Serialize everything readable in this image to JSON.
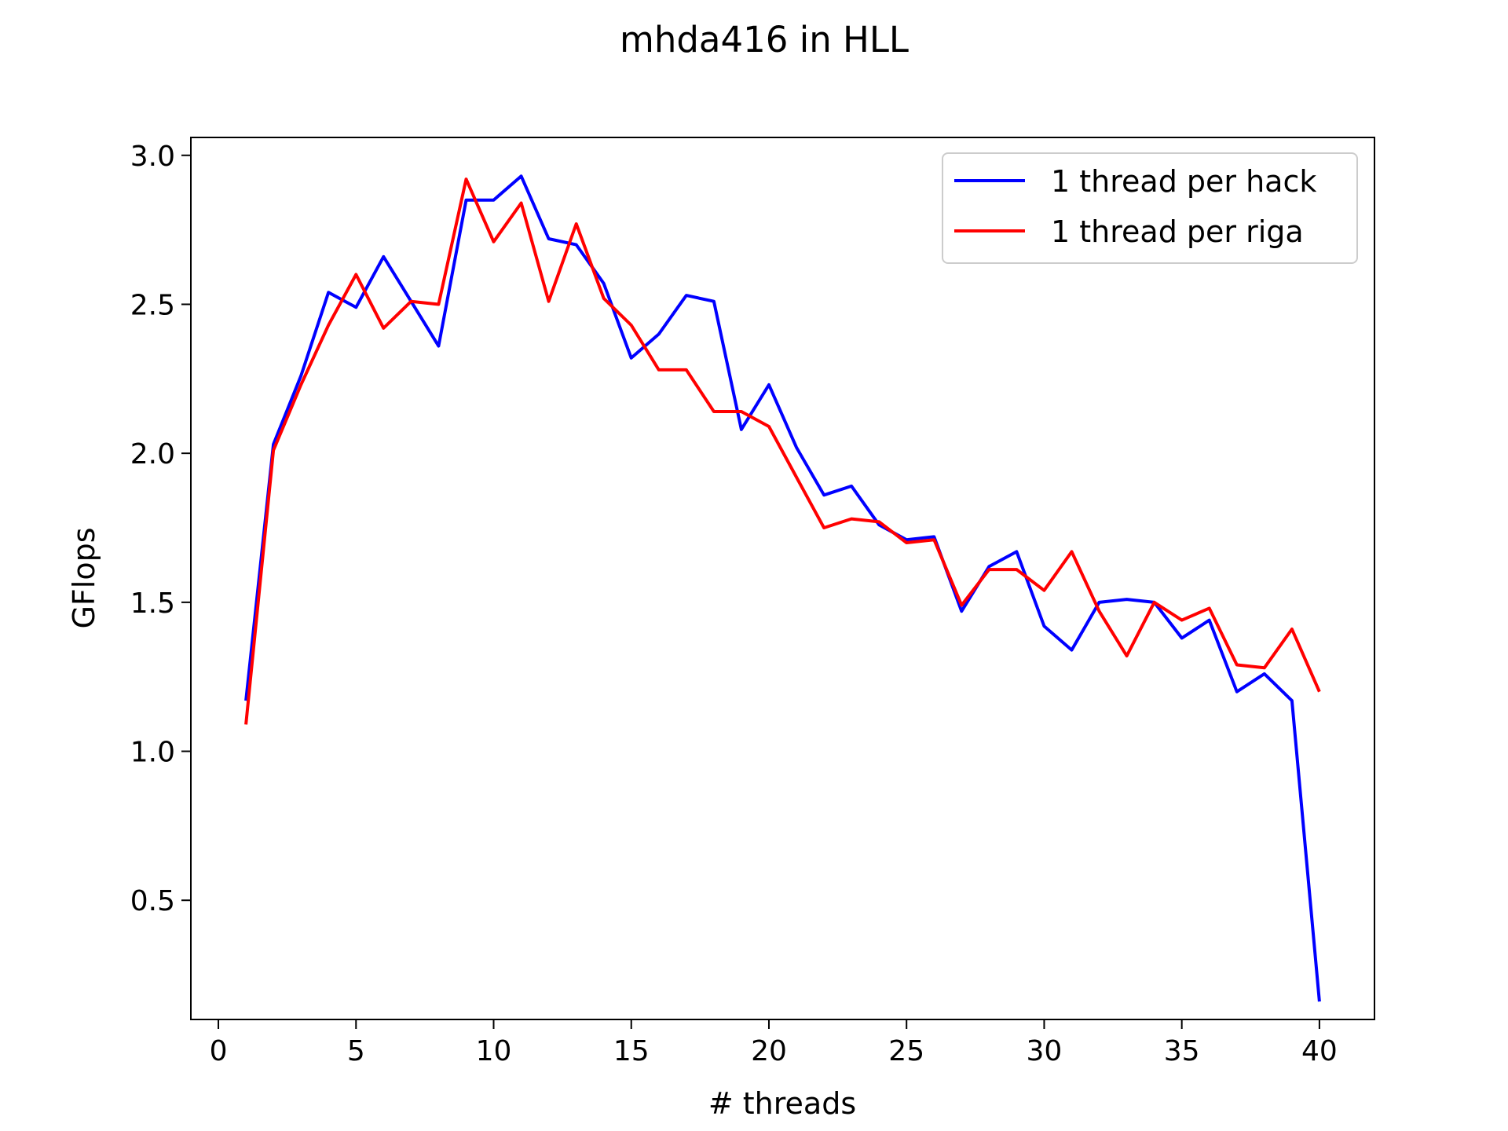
{
  "chart_data": {
    "type": "line",
    "title": "mhda416 in HLL",
    "xlabel": "# threads",
    "ylabel": "GFlops",
    "xlim": [
      -1,
      42
    ],
    "ylim": [
      0.1,
      3.06
    ],
    "xticks": [
      0,
      5,
      10,
      15,
      20,
      25,
      30,
      35,
      40
    ],
    "xtick_labels": [
      "0",
      "5",
      "10",
      "15",
      "20",
      "25",
      "30",
      "35",
      "40"
    ],
    "yticks": [
      0.5,
      1.0,
      1.5,
      2.0,
      2.5,
      3.0
    ],
    "ytick_labels": [
      "0.5",
      "1.0",
      "1.5",
      "2.0",
      "2.5",
      "3.0"
    ],
    "grid": false,
    "legend_position": "top-right",
    "x": [
      1,
      2,
      3,
      4,
      5,
      6,
      7,
      8,
      9,
      10,
      11,
      12,
      13,
      14,
      15,
      16,
      17,
      18,
      19,
      20,
      21,
      22,
      23,
      24,
      25,
      26,
      27,
      28,
      29,
      30,
      31,
      32,
      33,
      34,
      35,
      36,
      37,
      38,
      39,
      40
    ],
    "series": [
      {
        "name": "1 thread per hack",
        "color": "#0000ff",
        "values": [
          1.17,
          2.03,
          2.26,
          2.54,
          2.49,
          2.66,
          2.51,
          2.36,
          2.85,
          2.85,
          2.93,
          2.72,
          2.7,
          2.57,
          2.32,
          2.4,
          2.53,
          2.51,
          2.08,
          2.23,
          2.02,
          1.86,
          1.89,
          1.76,
          1.71,
          1.72,
          1.47,
          1.62,
          1.67,
          1.42,
          1.34,
          1.5,
          1.51,
          1.5,
          1.38,
          1.44,
          1.2,
          1.26,
          1.17,
          0.16
        ]
      },
      {
        "name": "1 thread per riga",
        "color": "#ff0000",
        "values": [
          1.09,
          2.01,
          2.23,
          2.43,
          2.6,
          2.42,
          2.51,
          2.5,
          2.92,
          2.71,
          2.84,
          2.51,
          2.77,
          2.52,
          2.43,
          2.28,
          2.28,
          2.14,
          2.14,
          2.09,
          1.92,
          1.75,
          1.78,
          1.77,
          1.7,
          1.71,
          1.49,
          1.61,
          1.61,
          1.54,
          1.67,
          1.47,
          1.32,
          1.5,
          1.44,
          1.48,
          1.29,
          1.28,
          1.41,
          1.2
        ]
      }
    ]
  }
}
